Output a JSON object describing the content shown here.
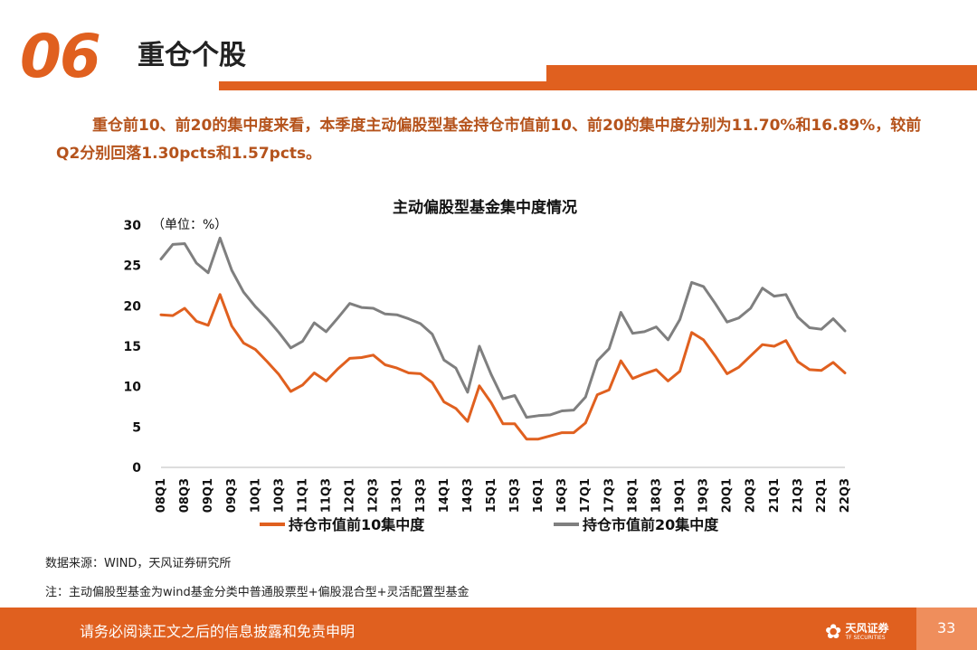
{
  "header": {
    "section_number": "06",
    "title": "重仓个股"
  },
  "summary": "重仓前10、前20的集中度来看，本季度主动偏股型基金持仓市值前10、前20的集中度分别为11.70%和16.89%，较前Q2分别回落1.30pcts和1.57pcts。",
  "chart_data": {
    "type": "line",
    "title": "主动偏股型基金集中度情况",
    "unit_label": "（单位：%）",
    "ylim": [
      0,
      30
    ],
    "yticks": [
      0,
      5,
      10,
      15,
      20,
      25,
      30
    ],
    "legend_position": "bottom",
    "grid": false,
    "x": [
      "08Q1",
      "08Q2",
      "08Q3",
      "08Q4",
      "09Q1",
      "09Q2",
      "09Q3",
      "09Q4",
      "10Q1",
      "10Q2",
      "10Q3",
      "10Q4",
      "11Q1",
      "11Q2",
      "11Q3",
      "11Q4",
      "12Q1",
      "12Q2",
      "12Q3",
      "12Q4",
      "13Q1",
      "13Q2",
      "13Q3",
      "13Q4",
      "14Q1",
      "14Q2",
      "14Q3",
      "14Q4",
      "15Q1",
      "15Q2",
      "15Q3",
      "15Q4",
      "16Q1",
      "16Q2",
      "16Q3",
      "16Q4",
      "17Q1",
      "17Q2",
      "17Q3",
      "17Q4",
      "18Q1",
      "18Q2",
      "18Q3",
      "18Q4",
      "19Q1",
      "19Q2",
      "19Q3",
      "19Q4",
      "20Q1",
      "20Q2",
      "20Q3",
      "20Q4",
      "21Q1",
      "21Q2",
      "21Q3",
      "21Q4",
      "22Q1",
      "22Q2",
      "22Q3"
    ],
    "xtick_labels": [
      "08Q1",
      "08Q3",
      "09Q1",
      "09Q3",
      "10Q1",
      "10Q3",
      "11Q1",
      "11Q3",
      "12Q1",
      "12Q3",
      "13Q1",
      "13Q3",
      "14Q1",
      "14Q3",
      "15Q1",
      "15Q3",
      "16Q1",
      "16Q3",
      "17Q1",
      "17Q3",
      "18Q1",
      "18Q3",
      "19Q1",
      "19Q3",
      "20Q1",
      "20Q3",
      "21Q1",
      "21Q3",
      "22Q1",
      "22Q3"
    ],
    "series": [
      {
        "name": "持仓市值前10集中度",
        "color": "#e0601f",
        "values": [
          18.9,
          18.8,
          19.7,
          18.1,
          17.6,
          21.4,
          17.5,
          15.4,
          14.6,
          13.1,
          11.5,
          9.4,
          10.2,
          11.7,
          10.7,
          12.2,
          13.5,
          13.6,
          13.9,
          12.7,
          12.3,
          11.7,
          11.6,
          10.5,
          8.1,
          7.3,
          5.7,
          10.1,
          8.0,
          5.4,
          5.4,
          3.5,
          3.5,
          3.9,
          4.3,
          4.3,
          5.5,
          9.0,
          9.6,
          13.2,
          11.0,
          11.6,
          12.1,
          10.7,
          11.9,
          16.7,
          15.8,
          13.8,
          11.6,
          12.4,
          13.8,
          15.2,
          15.0,
          15.7,
          13.1,
          12.1,
          12.0,
          13.0,
          11.7
        ]
      },
      {
        "name": "持仓市值前20集中度",
        "color": "#7f7f7f",
        "values": [
          25.8,
          27.6,
          27.7,
          25.3,
          24.1,
          28.4,
          24.4,
          21.7,
          19.9,
          18.4,
          16.7,
          14.8,
          15.6,
          17.9,
          16.8,
          18.5,
          20.3,
          19.8,
          19.7,
          19.0,
          18.9,
          18.4,
          17.8,
          16.5,
          13.3,
          12.3,
          9.3,
          15.0,
          11.5,
          8.5,
          8.9,
          6.2,
          6.4,
          6.5,
          7.0,
          7.1,
          8.7,
          13.2,
          14.7,
          19.2,
          16.6,
          16.8,
          17.4,
          15.8,
          18.3,
          22.9,
          22.4,
          20.3,
          18.0,
          18.5,
          19.7,
          22.2,
          21.2,
          21.4,
          18.6,
          17.3,
          17.1,
          18.4,
          16.9
        ]
      }
    ]
  },
  "source_note": "数据来源：WIND，天风证券研究所",
  "definition_note": "注：主动偏股型基金为wind基金分类中普通股票型+偏股混合型+灵活配置型基金",
  "footer": {
    "disclaimer": "请务必阅读正文之后的信息披露和免责申明",
    "logo_name": "天风证券",
    "logo_sub": "TF SECURITIES",
    "logo_icon": "flower-icon",
    "page_number": "33"
  },
  "colors": {
    "accent": "#e0601f",
    "summary_text": "#b5531c",
    "page_box": "#ef8e5c"
  }
}
